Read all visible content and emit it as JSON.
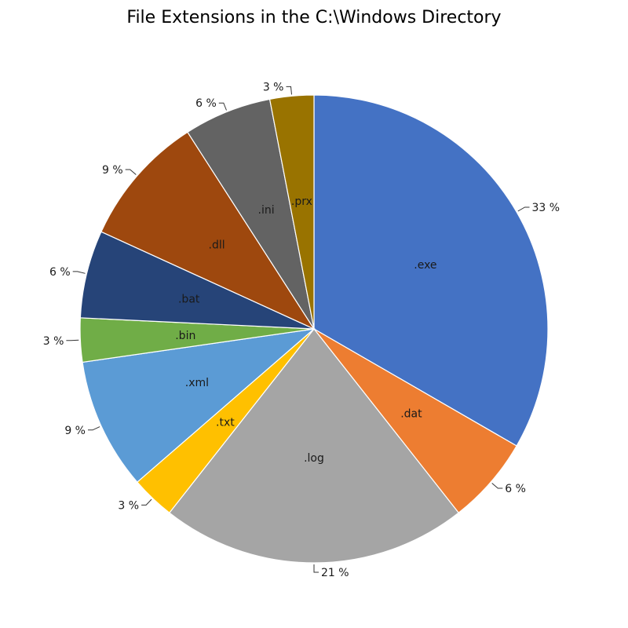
{
  "chart_data": {
    "type": "pie",
    "title": "File Extensions in the C:\\Windows Directory",
    "slices": [
      {
        "label": ".exe",
        "value": 33,
        "percent_label": "33 %",
        "color": "#4472C4"
      },
      {
        "label": ".dat",
        "value": 6,
        "percent_label": "6 %",
        "color": "#ED7D31"
      },
      {
        "label": ".log",
        "value": 21,
        "percent_label": "21 %",
        "color": "#A5A5A5"
      },
      {
        "label": ".txt",
        "value": 3,
        "percent_label": "3 %",
        "color": "#FFC000"
      },
      {
        "label": ".xml",
        "value": 9,
        "percent_label": "9 %",
        "color": "#5B9BD5"
      },
      {
        "label": ".bin",
        "value": 3,
        "percent_label": "3 %",
        "color": "#70AD47"
      },
      {
        "label": ".bat",
        "value": 6,
        "percent_label": "6 %",
        "color": "#264478"
      },
      {
        "label": ".dll",
        "value": 9,
        "percent_label": "9 %",
        "color": "#9E480E"
      },
      {
        "label": ".ini",
        "value": 6,
        "percent_label": "6 %",
        "color": "#636363"
      },
      {
        "label": ".prx",
        "value": 3,
        "percent_label": "3 %",
        "color": "#997300"
      }
    ],
    "legend": "none"
  }
}
